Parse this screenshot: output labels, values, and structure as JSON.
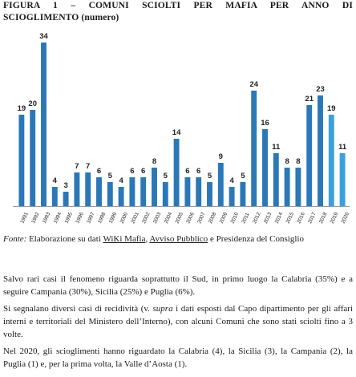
{
  "title": {
    "line1": "FIGURA 1 – COMUNI SCIOLTI PER MAFIA PER ANNO DI",
    "line2": "SCIOGLIMENTO (numero)"
  },
  "chart_data": {
    "type": "bar",
    "title": "FIGURA 1 – COMUNI SCIOLTI PER MAFIA PER ANNO DI SCIOGLIMENTO (numero)",
    "categories": [
      "1991",
      "1992",
      "1993",
      "1994",
      "1995",
      "1996",
      "1997",
      "1998",
      "1999",
      "2000",
      "2001",
      "2002",
      "2003",
      "2004",
      "2005",
      "2006",
      "2007",
      "2008",
      "2009",
      "2010",
      "2011",
      "2012",
      "2013",
      "2014",
      "2015",
      "2016",
      "2017",
      "2018",
      "2019",
      "2020"
    ],
    "values": [
      19,
      20,
      34,
      4,
      3,
      7,
      7,
      6,
      5,
      4,
      6,
      6,
      8,
      5,
      14,
      6,
      6,
      5,
      9,
      4,
      5,
      24,
      16,
      11,
      8,
      8,
      21,
      23,
      19,
      11
    ],
    "ylim": [
      0,
      36
    ],
    "grid": false,
    "legend": "none",
    "colors": {
      "default": "#2a78b8",
      "highlight": "#3aa0e0",
      "axis": "#9a9a9a",
      "label": "#222222"
    },
    "highlight_categories": [
      "2019",
      "2020"
    ]
  },
  "source": {
    "label": "Fonte:",
    "prefix": " Elaborazione su dati ",
    "link1": "WiKi Mafia",
    "sep": ", ",
    "link2": "Avviso Pubblico",
    "suffix": " e Presidenza del Consiglio"
  },
  "paragraphs": {
    "p1": "Salvo rari casi il fenomeno riguarda soprattutto il Sud, in primo luogo la Calabria (35%) e a seguire Campania (30%), Sicilia (25%) e Puglia (6%).",
    "p2_a": "Si segnalano diversi casi di recidività (v. ",
    "p2_em": "supra",
    "p2_b": " i dati esposti dal Capo dipartimento per gli affari interni e territoriali del Ministero dell’Interno), con alcuni Comuni che sono stati sciolti fino a 3 volte.",
    "p3": "Nel 2020, gli scioglimenti hanno riguardato la Calabria (4), la Sicilia (3), la Campania (2), la Puglia (1) e, per la prima volta, la Valle d’Aosta (1)."
  }
}
